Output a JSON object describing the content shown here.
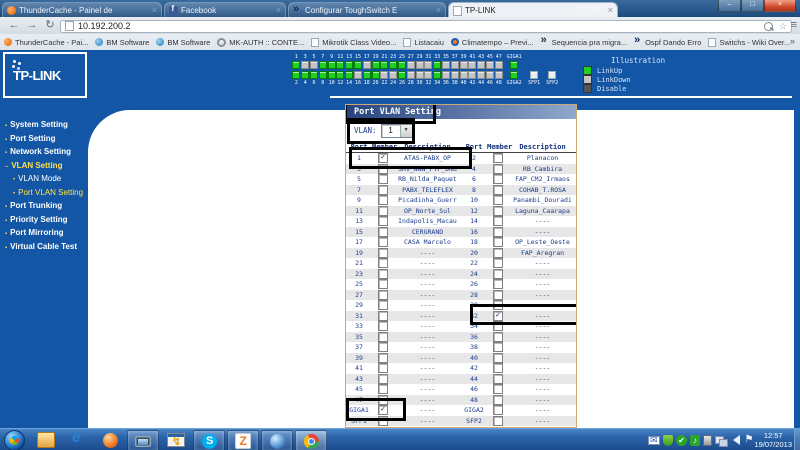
{
  "browser": {
    "tabs": [
      {
        "title": "ThunderCache - Painel de",
        "icon": "thundercache",
        "active": false
      },
      {
        "title": "Facebook",
        "icon": "facebook",
        "active": false
      },
      {
        "title": "Configurar ToughSwitch E",
        "icon": "toughswitch",
        "active": false
      },
      {
        "title": "TP-LINK",
        "icon": "page",
        "active": true
      }
    ],
    "window_controls": {
      "minimize": "–",
      "maximize": "□",
      "close": "×"
    },
    "toolbar": {
      "back": "←",
      "forward": "→",
      "reload": "↻",
      "address": "10.192.200.2",
      "star": "☆",
      "menu": "≡"
    },
    "bookmarks_bar": {
      "items": [
        {
          "label": "ThunderCache - Pai...",
          "icon": "thunder"
        },
        {
          "label": "BM Software",
          "icon": "globe"
        },
        {
          "label": "BM Software",
          "icon": "globe"
        },
        {
          "label": "MK-AUTH :: CONTE...",
          "icon": "ring"
        },
        {
          "label": "Mikrotik Class Video...",
          "icon": "page"
        },
        {
          "label": "Listacaiu",
          "icon": "page"
        },
        {
          "label": "Climatempo – Previ...",
          "icon": "climate"
        },
        {
          "label": "Sequencia pra migra...",
          "icon": "dark"
        },
        {
          "label": "Ospf Dando Erro",
          "icon": "dark"
        },
        {
          "label": "Switchs - Wiki Over...",
          "icon": "page"
        }
      ],
      "overflow": "»"
    }
  },
  "page": {
    "brand": "TP-LINK",
    "banner": {
      "top_ports": [
        {
          "label": "1",
          "state": "up"
        },
        {
          "label": "3",
          "state": "down"
        },
        {
          "label": "5",
          "state": "down"
        },
        {
          "label": "7",
          "state": "up"
        },
        {
          "label": "9",
          "state": "up"
        },
        {
          "label": "11",
          "state": "up"
        },
        {
          "label": "13",
          "state": "up"
        },
        {
          "label": "15",
          "state": "up"
        },
        {
          "label": "17",
          "state": "down"
        },
        {
          "label": "19",
          "state": "up"
        },
        {
          "label": "21",
          "state": "up"
        },
        {
          "label": "23",
          "state": "up"
        },
        {
          "label": "25",
          "state": "up"
        },
        {
          "label": "27",
          "state": "down"
        },
        {
          "label": "29",
          "state": "down"
        },
        {
          "label": "31",
          "state": "down"
        },
        {
          "label": "33",
          "state": "up"
        },
        {
          "label": "35",
          "state": "down"
        },
        {
          "label": "37",
          "state": "down"
        },
        {
          "label": "39",
          "state": "down"
        },
        {
          "label": "41",
          "state": "down"
        },
        {
          "label": "43",
          "state": "down"
        },
        {
          "label": "45",
          "state": "down"
        },
        {
          "label": "47",
          "state": "down"
        },
        {
          "label": "GIGA1",
          "state": "up"
        }
      ],
      "bottom_ports": [
        {
          "label": "2",
          "state": "up"
        },
        {
          "label": "4",
          "state": "up"
        },
        {
          "label": "6",
          "state": "up"
        },
        {
          "label": "8",
          "state": "up"
        },
        {
          "label": "10",
          "state": "up"
        },
        {
          "label": "12",
          "state": "up"
        },
        {
          "label": "14",
          "state": "up"
        },
        {
          "label": "16",
          "state": "down"
        },
        {
          "label": "18",
          "state": "up"
        },
        {
          "label": "20",
          "state": "up"
        },
        {
          "label": "22",
          "state": "down"
        },
        {
          "label": "24",
          "state": "down"
        },
        {
          "label": "26",
          "state": "up"
        },
        {
          "label": "28",
          "state": "down"
        },
        {
          "label": "30",
          "state": "down"
        },
        {
          "label": "32",
          "state": "down"
        },
        {
          "label": "34",
          "state": "up"
        },
        {
          "label": "36",
          "state": "down"
        },
        {
          "label": "38",
          "state": "down"
        },
        {
          "label": "40",
          "state": "down"
        },
        {
          "label": "42",
          "state": "down"
        },
        {
          "label": "44",
          "state": "down"
        },
        {
          "label": "46",
          "state": "down"
        },
        {
          "label": "48",
          "state": "down"
        },
        {
          "label": "GIGA2",
          "state": "up"
        },
        {
          "label": "SFP1",
          "state": "none"
        },
        {
          "label": "SFP2",
          "state": "none"
        }
      ],
      "legend": {
        "title": "Illustration",
        "items": [
          {
            "label": "LinkUp",
            "state": "up"
          },
          {
            "label": "LinkDown",
            "state": "down"
          },
          {
            "label": "Disable",
            "state": "disable"
          }
        ]
      }
    },
    "sidebar": [
      {
        "label": "System Setting"
      },
      {
        "label": "Port Setting"
      },
      {
        "label": "Network Setting"
      },
      {
        "label": "VLAN Setting",
        "highlight": true,
        "expanded": true
      },
      {
        "label": "VLAN Mode",
        "sub": true
      },
      {
        "label": "Port VLAN Setting",
        "sub": true,
        "highlight": true
      },
      {
        "label": "Port Trunking"
      },
      {
        "label": "Priority Setting"
      },
      {
        "label": "Port Mirroring"
      },
      {
        "label": "Virtual Cable Test"
      }
    ],
    "panel": {
      "title": "Port VLAN Setting",
      "vlan_label": "VLAN:",
      "vlan_value": "1",
      "headers": [
        "Port",
        "Member",
        "Description",
        "Port",
        "Member",
        "Description"
      ],
      "rows": [
        {
          "l": {
            "port": "1",
            "checked": true,
            "desc": "ATAS-PABX_OP"
          },
          "r": {
            "port": "2",
            "checked": false,
            "desc": "Planacon"
          }
        },
        {
          "l": {
            "port": "3",
            "checked": false,
            "desc": "SRV_WWW_PTP_DNG"
          },
          "r": {
            "port": "4",
            "checked": false,
            "desc": "RB_Cambira"
          }
        },
        {
          "l": {
            "port": "5",
            "checked": false,
            "desc": "RB_Nilda_Paquet"
          },
          "r": {
            "port": "6",
            "checked": false,
            "desc": "FAP_CM2_Irmaos"
          }
        },
        {
          "l": {
            "port": "7",
            "checked": false,
            "desc": "PABX_TELEFLEX"
          },
          "r": {
            "port": "8",
            "checked": false,
            "desc": "COHAB_T.ROSA"
          }
        },
        {
          "l": {
            "port": "9",
            "checked": false,
            "desc": "Picadinha_Guerr"
          },
          "r": {
            "port": "10",
            "checked": false,
            "desc": "Panambi_Douradi"
          }
        },
        {
          "l": {
            "port": "11",
            "checked": false,
            "desc": "OP_Norte_Sul"
          },
          "r": {
            "port": "12",
            "checked": false,
            "desc": "Laguna_Caarapa"
          }
        },
        {
          "l": {
            "port": "13",
            "checked": false,
            "desc": "Indapolis_Macau"
          },
          "r": {
            "port": "14",
            "checked": false,
            "desc": "----"
          }
        },
        {
          "l": {
            "port": "15",
            "checked": false,
            "desc": "CERGRAND"
          },
          "r": {
            "port": "16",
            "checked": false,
            "desc": "----"
          }
        },
        {
          "l": {
            "port": "17",
            "checked": false,
            "desc": "CASA Marcelo"
          },
          "r": {
            "port": "18",
            "checked": false,
            "desc": "OP_Leste_Oeste"
          }
        },
        {
          "l": {
            "port": "19",
            "checked": false,
            "desc": "----"
          },
          "r": {
            "port": "20",
            "checked": false,
            "desc": "FAP_Aregran"
          }
        },
        {
          "l": {
            "port": "21",
            "checked": false,
            "desc": "----"
          },
          "r": {
            "port": "22",
            "checked": false,
            "desc": "----"
          }
        },
        {
          "l": {
            "port": "23",
            "checked": false,
            "desc": "----"
          },
          "r": {
            "port": "24",
            "checked": false,
            "desc": "----"
          }
        },
        {
          "l": {
            "port": "25",
            "checked": false,
            "desc": "----"
          },
          "r": {
            "port": "26",
            "checked": false,
            "desc": "----"
          }
        },
        {
          "l": {
            "port": "27",
            "checked": false,
            "desc": "----"
          },
          "r": {
            "port": "28",
            "checked": false,
            "desc": "----"
          }
        },
        {
          "l": {
            "port": "29",
            "checked": false,
            "desc": "----"
          },
          "r": {
            "port": "30",
            "checked": false,
            "desc": "----"
          }
        },
        {
          "l": {
            "port": "31",
            "checked": false,
            "desc": "----"
          },
          "r": {
            "port": "32",
            "checked": true,
            "desc": "----"
          }
        },
        {
          "l": {
            "port": "33",
            "checked": false,
            "desc": "----"
          },
          "r": {
            "port": "34",
            "checked": false,
            "desc": "----"
          }
        },
        {
          "l": {
            "port": "35",
            "checked": false,
            "desc": "----"
          },
          "r": {
            "port": "36",
            "checked": false,
            "desc": "----"
          }
        },
        {
          "l": {
            "port": "37",
            "checked": false,
            "desc": "----"
          },
          "r": {
            "port": "38",
            "checked": false,
            "desc": "----"
          }
        },
        {
          "l": {
            "port": "39",
            "checked": false,
            "desc": "----"
          },
          "r": {
            "port": "40",
            "checked": false,
            "desc": "----"
          }
        },
        {
          "l": {
            "port": "41",
            "checked": false,
            "desc": "----"
          },
          "r": {
            "port": "42",
            "checked": false,
            "desc": "----"
          }
        },
        {
          "l": {
            "port": "43",
            "checked": false,
            "desc": "----"
          },
          "r": {
            "port": "44",
            "checked": false,
            "desc": "----"
          }
        },
        {
          "l": {
            "port": "45",
            "checked": false,
            "desc": "----"
          },
          "r": {
            "port": "46",
            "checked": false,
            "desc": "----"
          }
        },
        {
          "l": {
            "port": "47",
            "checked": false,
            "desc": "----"
          },
          "r": {
            "port": "48",
            "checked": false,
            "desc": "----"
          }
        },
        {
          "l": {
            "port": "GIGA1",
            "checked": true,
            "desc": "----"
          },
          "r": {
            "port": "GIGA2",
            "checked": false,
            "desc": "----"
          }
        },
        {
          "l": {
            "port": "SFP1",
            "checked": false,
            "desc": "----"
          },
          "r": {
            "port": "SFP2",
            "checked": false,
            "desc": "----"
          }
        }
      ]
    }
  },
  "taskbar": {
    "apps": [
      {
        "name": "explorer",
        "running": false,
        "active": false
      },
      {
        "name": "internet-explorer",
        "running": false,
        "active": false
      },
      {
        "name": "firefox",
        "running": false,
        "active": false
      },
      {
        "name": "remote-desktop",
        "running": true,
        "active": false
      },
      {
        "name": "winbox",
        "running": false,
        "active": false
      },
      {
        "name": "skype",
        "running": true,
        "active": false
      },
      {
        "name": "zimbra",
        "running": true,
        "active": false
      },
      {
        "name": "sphere-app",
        "running": true,
        "active": false
      },
      {
        "name": "chrome",
        "running": true,
        "active": true
      }
    ],
    "tray_icons": [
      "mail",
      "shield",
      "antivirus-check",
      "agent-note",
      "usb-device",
      "network",
      "volume",
      "action-center-flag"
    ],
    "clock": {
      "time": "12:57",
      "date": "19/07/2013"
    }
  }
}
